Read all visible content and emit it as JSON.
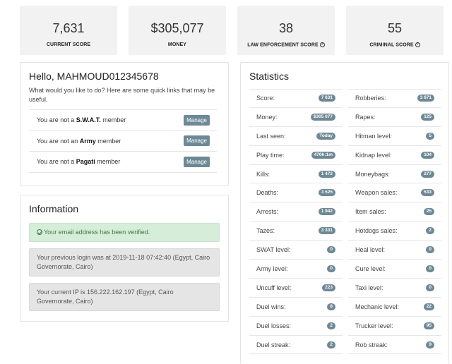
{
  "stats": [
    {
      "value": "7,631",
      "label": "CURRENT SCORE",
      "help": false
    },
    {
      "value": "$305,077",
      "label": "MONEY",
      "help": false
    },
    {
      "value": "38",
      "label": "LAW ENFORCEMENT SCORE",
      "help": true
    },
    {
      "value": "55",
      "label": "CRIMINAL SCORE",
      "help": true
    }
  ],
  "hello": {
    "title": "Hello, MAHMOUD012345678",
    "subtitle": "What would you like to do? Here are some quick links that may be useful.",
    "manage_label": "Manage",
    "memberships": [
      {
        "prefix": "You are not a ",
        "group": "S.W.A.T.",
        "suffix": " member"
      },
      {
        "prefix": "You are not an ",
        "group": "Army",
        "suffix": " member"
      },
      {
        "prefix": "You are not a ",
        "group": "Pagati",
        "suffix": " member"
      }
    ]
  },
  "information": {
    "title": "Information",
    "verified": "Your email address has been verified.",
    "previous_login": "Your previous login was at 2019-11-18 07:42:40 (Egypt, Cairo Governorate, Cairo)",
    "current_ip": "Your current IP is 156.222.162.197 (Egypt, Cairo Governorate, Cairo)"
  },
  "statistics": {
    "title": "Statistics",
    "left": [
      {
        "label": "Score:",
        "value": "7 631"
      },
      {
        "label": "Money:",
        "value": "$305 077"
      },
      {
        "label": "Last seen:",
        "value": "Today"
      },
      {
        "label": "Play time:",
        "value": "470h:1m"
      },
      {
        "label": "Kills:",
        "value": "1 472"
      },
      {
        "label": "Deaths:",
        "value": "3 525"
      },
      {
        "label": "Arrests:",
        "value": "1 942"
      },
      {
        "label": "Tazes:",
        "value": "3 331"
      },
      {
        "label": "SWAT level:",
        "value": "0"
      },
      {
        "label": "Army level:",
        "value": "0"
      },
      {
        "label": "Uncuff level:",
        "value": "223"
      },
      {
        "label": "Duel wins:",
        "value": "8"
      },
      {
        "label": "Duel losses:",
        "value": "2"
      },
      {
        "label": "Duel streak:",
        "value": "2"
      }
    ],
    "right": [
      {
        "label": "Robberies:",
        "value": "3 671"
      },
      {
        "label": "Rapes:",
        "value": "125"
      },
      {
        "label": "Hitman level:",
        "value": "5"
      },
      {
        "label": "Kidnap level:",
        "value": "104"
      },
      {
        "label": "Moneybags:",
        "value": "277"
      },
      {
        "label": "Weapon sales:",
        "value": "533"
      },
      {
        "label": "Item sales:",
        "value": "25"
      },
      {
        "label": "Hotdogs sales:",
        "value": "2"
      },
      {
        "label": "Heal level:",
        "value": "0"
      },
      {
        "label": "Cure level:",
        "value": "0"
      },
      {
        "label": "Taxi level:",
        "value": "0"
      },
      {
        "label": "Mechanic level:",
        "value": "22"
      },
      {
        "label": "Trucker level:",
        "value": "95"
      },
      {
        "label": "Rob streak:",
        "value": "9"
      }
    ]
  }
}
